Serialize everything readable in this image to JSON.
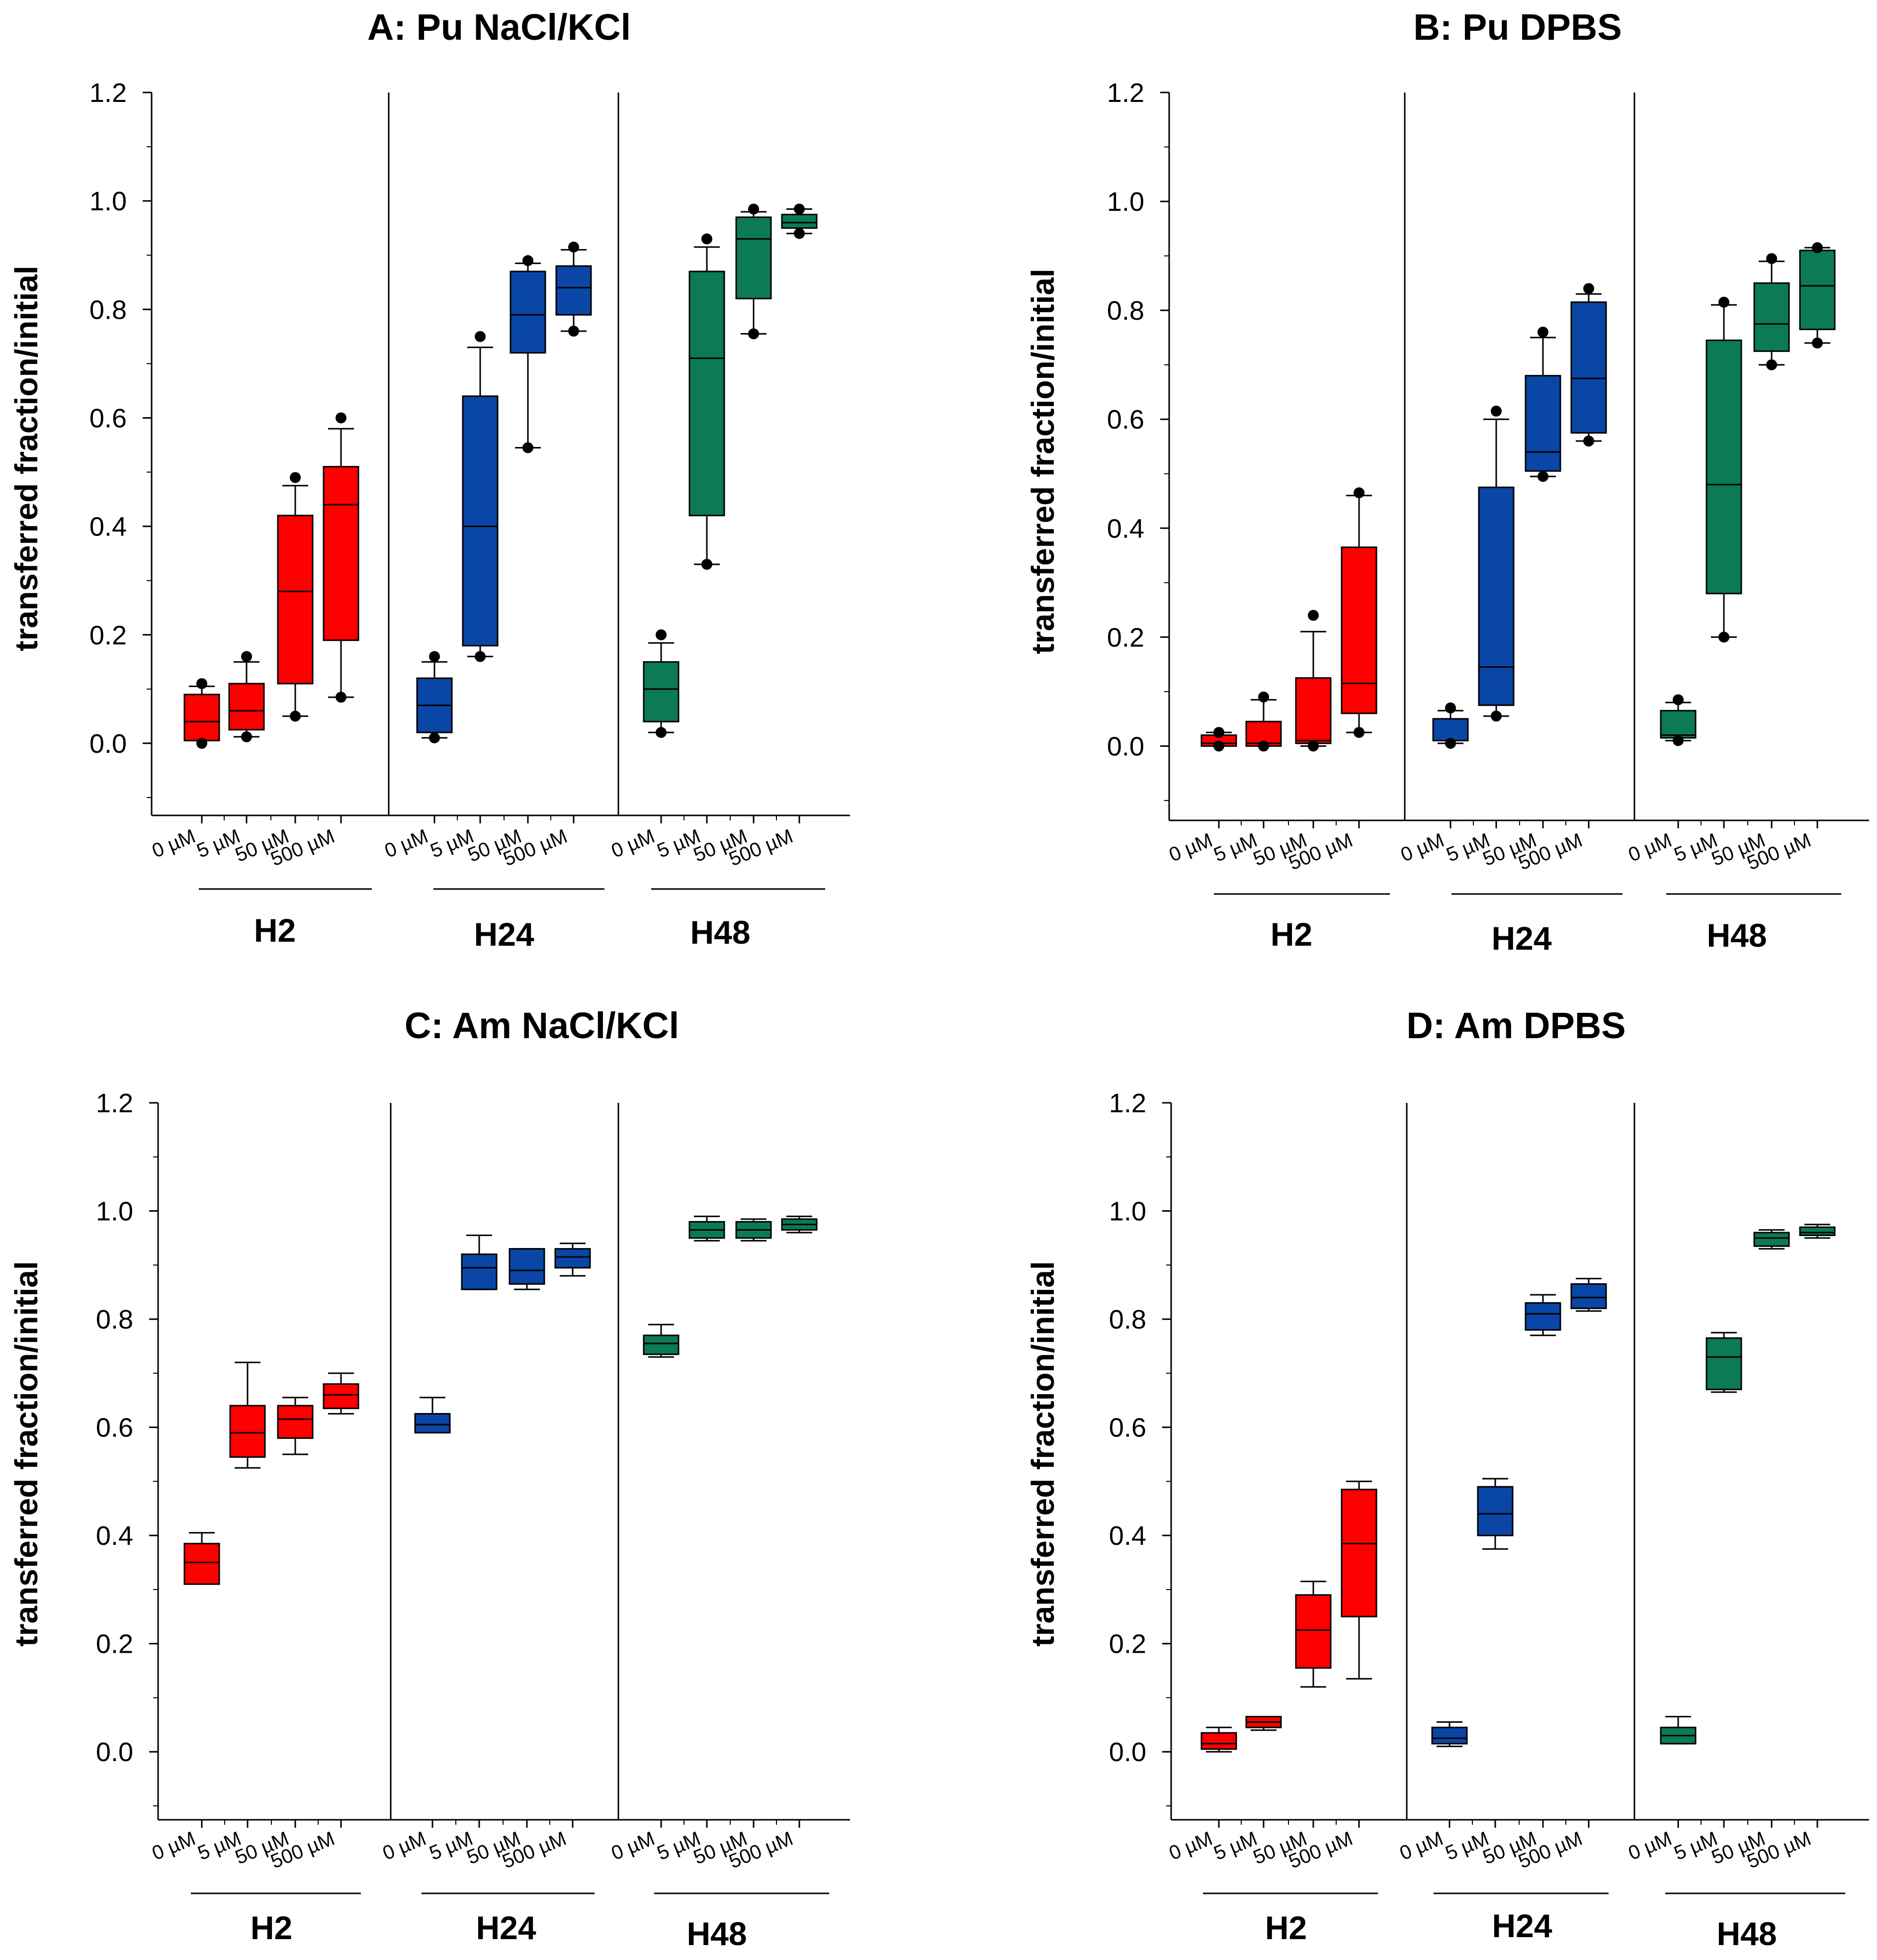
{
  "figure": {
    "group_colors": [
      "#ff0000",
      "#0a46a6",
      "#0b7a55"
    ]
  },
  "chart_data": [
    {
      "type": "box",
      "title": "A: Pu NaCl/KCl",
      "ylabel": "transferred fraction/initial",
      "ylim": [
        -0.1,
        1.2
      ],
      "yticks": [
        "0.0",
        "0.2",
        "0.4",
        "0.6",
        "0.8",
        "1.0",
        "1.2"
      ],
      "categories": [
        "0 µM",
        "5 µM",
        "50 µM",
        "500 µM"
      ],
      "groups": [
        {
          "name": "H2",
          "color": "#ff0000",
          "boxes": [
            {
              "whislo": 0.005,
              "q1": 0.005,
              "med": 0.04,
              "q3": 0.09,
              "whishi": 0.105,
              "fliers": [
                0.0,
                0.11
              ]
            },
            {
              "whislo": 0.012,
              "q1": 0.025,
              "med": 0.06,
              "q3": 0.11,
              "whishi": 0.15,
              "fliers": [
                0.012,
                0.16
              ]
            },
            {
              "whislo": 0.05,
              "q1": 0.11,
              "med": 0.28,
              "q3": 0.42,
              "whishi": 0.475,
              "fliers": [
                0.05,
                0.49
              ]
            },
            {
              "whislo": 0.085,
              "q1": 0.19,
              "med": 0.44,
              "q3": 0.51,
              "whishi": 0.58,
              "fliers": [
                0.085,
                0.6
              ]
            }
          ]
        },
        {
          "name": "H24",
          "color": "#0a46a6",
          "boxes": [
            {
              "whislo": 0.01,
              "q1": 0.02,
              "med": 0.07,
              "q3": 0.12,
              "whishi": 0.15,
              "fliers": [
                0.01,
                0.16
              ]
            },
            {
              "whislo": 0.16,
              "q1": 0.18,
              "med": 0.4,
              "q3": 0.64,
              "whishi": 0.73,
              "fliers": [
                0.16,
                0.75
              ]
            },
            {
              "whislo": 0.545,
              "q1": 0.72,
              "med": 0.79,
              "q3": 0.87,
              "whishi": 0.885,
              "fliers": [
                0.545,
                0.89
              ]
            },
            {
              "whislo": 0.76,
              "q1": 0.79,
              "med": 0.84,
              "q3": 0.88,
              "whishi": 0.91,
              "fliers": [
                0.76,
                0.915
              ]
            }
          ]
        },
        {
          "name": "H48",
          "color": "#0b7a55",
          "boxes": [
            {
              "whislo": 0.02,
              "q1": 0.04,
              "med": 0.1,
              "q3": 0.15,
              "whishi": 0.185,
              "fliers": [
                0.02,
                0.2
              ]
            },
            {
              "whislo": 0.33,
              "q1": 0.42,
              "med": 0.71,
              "q3": 0.87,
              "whishi": 0.915,
              "fliers": [
                0.33,
                0.93
              ]
            },
            {
              "whislo": 0.755,
              "q1": 0.82,
              "med": 0.93,
              "q3": 0.97,
              "whishi": 0.98,
              "fliers": [
                0.755,
                0.985
              ]
            },
            {
              "whislo": 0.94,
              "q1": 0.95,
              "med": 0.96,
              "q3": 0.975,
              "whishi": 0.985,
              "fliers": [
                0.94,
                0.985
              ]
            }
          ]
        }
      ]
    },
    {
      "type": "box",
      "title": "B: Pu DPBS",
      "ylabel": "transferred fraction/initial",
      "ylim": [
        -0.1,
        1.2
      ],
      "yticks": [
        "0.0",
        "0.2",
        "0.4",
        "0.6",
        "0.8",
        "1.0",
        "1.2"
      ],
      "categories": [
        "0 µM",
        "5 µM",
        "50 µM",
        "500 µM"
      ],
      "groups": [
        {
          "name": "H2",
          "color": "#ff0000",
          "boxes": [
            {
              "whislo": 0.0,
              "q1": 0.0,
              "med": 0.005,
              "q3": 0.02,
              "whishi": 0.025,
              "fliers": [
                0.0,
                0.025
              ]
            },
            {
              "whislo": 0.0,
              "q1": 0.0,
              "med": 0.005,
              "q3": 0.045,
              "whishi": 0.085,
              "fliers": [
                0.0,
                0.09
              ]
            },
            {
              "whislo": 0.0,
              "q1": 0.005,
              "med": 0.01,
              "q3": 0.125,
              "whishi": 0.21,
              "fliers": [
                0.0,
                0.24
              ]
            },
            {
              "whislo": 0.025,
              "q1": 0.06,
              "med": 0.115,
              "q3": 0.365,
              "whishi": 0.46,
              "fliers": [
                0.025,
                0.465
              ]
            }
          ]
        },
        {
          "name": "H24",
          "color": "#0a46a6",
          "boxes": [
            {
              "whislo": 0.005,
              "q1": 0.01,
              "med": 0.01,
              "q3": 0.05,
              "whishi": 0.065,
              "fliers": [
                0.005,
                0.07
              ]
            },
            {
              "whislo": 0.055,
              "q1": 0.075,
              "med": 0.145,
              "q3": 0.475,
              "whishi": 0.6,
              "fliers": [
                0.055,
                0.615
              ]
            },
            {
              "whislo": 0.495,
              "q1": 0.505,
              "med": 0.54,
              "q3": 0.68,
              "whishi": 0.75,
              "fliers": [
                0.495,
                0.76
              ]
            },
            {
              "whislo": 0.56,
              "q1": 0.575,
              "med": 0.675,
              "q3": 0.815,
              "whishi": 0.83,
              "fliers": [
                0.56,
                0.84
              ]
            }
          ]
        },
        {
          "name": "H48",
          "color": "#0b7a55",
          "boxes": [
            {
              "whislo": 0.01,
              "q1": 0.015,
              "med": 0.02,
              "q3": 0.065,
              "whishi": 0.08,
              "fliers": [
                0.01,
                0.085
              ]
            },
            {
              "whislo": 0.2,
              "q1": 0.28,
              "med": 0.48,
              "q3": 0.745,
              "whishi": 0.81,
              "fliers": [
                0.2,
                0.815
              ]
            },
            {
              "whislo": 0.7,
              "q1": 0.725,
              "med": 0.775,
              "q3": 0.85,
              "whishi": 0.89,
              "fliers": [
                0.7,
                0.895
              ]
            },
            {
              "whislo": 0.74,
              "q1": 0.765,
              "med": 0.845,
              "q3": 0.91,
              "whishi": 0.915,
              "fliers": [
                0.74,
                0.915
              ]
            }
          ]
        }
      ]
    },
    {
      "type": "box",
      "title": "C: Am NaCl/KCl",
      "ylabel": "transferred fraction/initial",
      "ylim": [
        -0.1,
        1.2
      ],
      "yticks": [
        "0.0",
        "0.2",
        "0.4",
        "0.6",
        "0.8",
        "1.0",
        "1.2"
      ],
      "categories": [
        "0 µM",
        "5 µM",
        "50 µM",
        "500 µM"
      ],
      "groups": [
        {
          "name": "H2",
          "color": "#ff0000",
          "boxes": [
            {
              "whislo": 0.31,
              "q1": 0.31,
              "med": 0.35,
              "q3": 0.385,
              "whishi": 0.405,
              "fliers": []
            },
            {
              "whislo": 0.525,
              "q1": 0.545,
              "med": 0.59,
              "q3": 0.64,
              "whishi": 0.72,
              "fliers": []
            },
            {
              "whislo": 0.55,
              "q1": 0.58,
              "med": 0.615,
              "q3": 0.64,
              "whishi": 0.655,
              "fliers": []
            },
            {
              "whislo": 0.625,
              "q1": 0.635,
              "med": 0.66,
              "q3": 0.68,
              "whishi": 0.7,
              "fliers": []
            }
          ]
        },
        {
          "name": "H24",
          "color": "#0a46a6",
          "boxes": [
            {
              "whislo": 0.59,
              "q1": 0.59,
              "med": 0.605,
              "q3": 0.625,
              "whishi": 0.655,
              "fliers": []
            },
            {
              "whislo": 0.855,
              "q1": 0.855,
              "med": 0.895,
              "q3": 0.92,
              "whishi": 0.955,
              "fliers": []
            },
            {
              "whislo": 0.855,
              "q1": 0.865,
              "med": 0.89,
              "q3": 0.93,
              "whishi": 0.93,
              "fliers": []
            },
            {
              "whislo": 0.88,
              "q1": 0.895,
              "med": 0.915,
              "q3": 0.93,
              "whishi": 0.94,
              "fliers": []
            }
          ]
        },
        {
          "name": "H48",
          "color": "#0b7a55",
          "boxes": [
            {
              "whislo": 0.73,
              "q1": 0.735,
              "med": 0.755,
              "q3": 0.77,
              "whishi": 0.79,
              "fliers": []
            },
            {
              "whislo": 0.945,
              "q1": 0.95,
              "med": 0.965,
              "q3": 0.98,
              "whishi": 0.99,
              "fliers": []
            },
            {
              "whislo": 0.945,
              "q1": 0.95,
              "med": 0.965,
              "q3": 0.98,
              "whishi": 0.985,
              "fliers": []
            },
            {
              "whislo": 0.96,
              "q1": 0.965,
              "med": 0.975,
              "q3": 0.985,
              "whishi": 0.99,
              "fliers": []
            }
          ]
        }
      ]
    },
    {
      "type": "box",
      "title": "D: Am DPBS",
      "ylabel": "transferred fraction/initial",
      "ylim": [
        -0.1,
        1.2
      ],
      "yticks": [
        "0.0",
        "0.2",
        "0.4",
        "0.6",
        "0.8",
        "1.0",
        "1.2"
      ],
      "categories": [
        "0 µM",
        "5 µM",
        "50 µM",
        "500 µM"
      ],
      "groups": [
        {
          "name": "H2",
          "color": "#ff0000",
          "boxes": [
            {
              "whislo": 0.0,
              "q1": 0.005,
              "med": 0.015,
              "q3": 0.035,
              "whishi": 0.045,
              "fliers": []
            },
            {
              "whislo": 0.04,
              "q1": 0.045,
              "med": 0.055,
              "q3": 0.065,
              "whishi": 0.065,
              "fliers": []
            },
            {
              "whislo": 0.12,
              "q1": 0.155,
              "med": 0.225,
              "q3": 0.29,
              "whishi": 0.315,
              "fliers": []
            },
            {
              "whislo": 0.135,
              "q1": 0.25,
              "med": 0.385,
              "q3": 0.485,
              "whishi": 0.5,
              "fliers": []
            }
          ]
        },
        {
          "name": "H24",
          "color": "#0a46a6",
          "boxes": [
            {
              "whislo": 0.01,
              "q1": 0.015,
              "med": 0.025,
              "q3": 0.045,
              "whishi": 0.055,
              "fliers": []
            },
            {
              "whislo": 0.375,
              "q1": 0.4,
              "med": 0.44,
              "q3": 0.49,
              "whishi": 0.505,
              "fliers": []
            },
            {
              "whislo": 0.77,
              "q1": 0.78,
              "med": 0.81,
              "q3": 0.83,
              "whishi": 0.845,
              "fliers": []
            },
            {
              "whislo": 0.815,
              "q1": 0.82,
              "med": 0.84,
              "q3": 0.865,
              "whishi": 0.875,
              "fliers": []
            }
          ]
        },
        {
          "name": "H48",
          "color": "#0b7a55",
          "boxes": [
            {
              "whislo": 0.015,
              "q1": 0.015,
              "med": 0.03,
              "q3": 0.045,
              "whishi": 0.065,
              "fliers": []
            },
            {
              "whislo": 0.665,
              "q1": 0.67,
              "med": 0.73,
              "q3": 0.765,
              "whishi": 0.775,
              "fliers": []
            },
            {
              "whislo": 0.93,
              "q1": 0.935,
              "med": 0.95,
              "q3": 0.96,
              "whishi": 0.965,
              "fliers": []
            },
            {
              "whislo": 0.95,
              "q1": 0.955,
              "med": 0.96,
              "q3": 0.97,
              "whishi": 0.975,
              "fliers": []
            }
          ]
        }
      ]
    }
  ]
}
